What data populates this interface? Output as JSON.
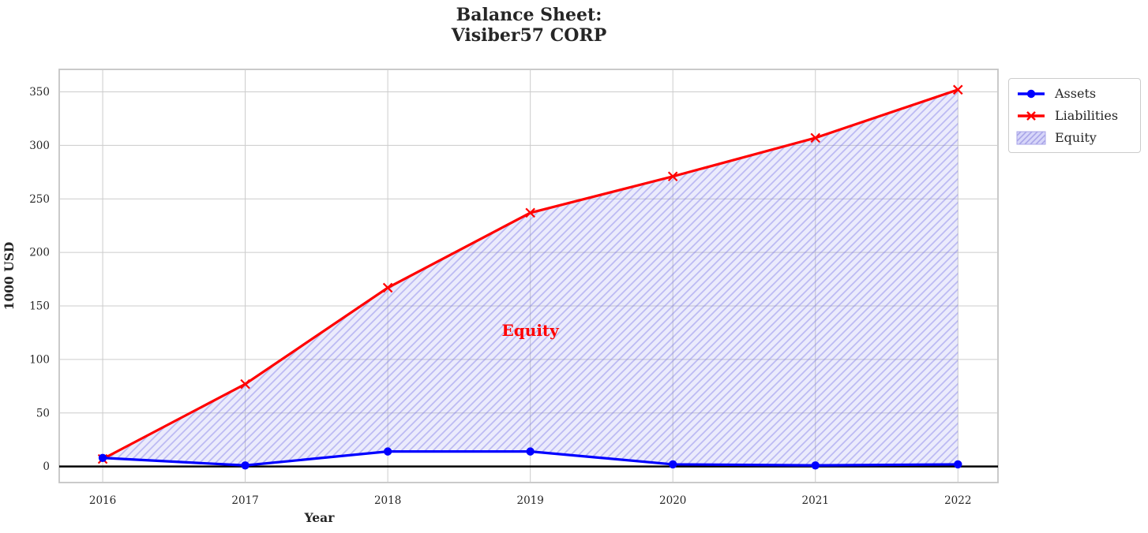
{
  "title": {
    "line1": "Balance Sheet:",
    "line2": "Visiber57 CORP"
  },
  "legend": {
    "items": [
      {
        "label": "Assets",
        "marker": "circle-line"
      },
      {
        "label": "Liabilities",
        "marker": "x-line"
      },
      {
        "label": "Equity",
        "marker": "hatched-patch"
      }
    ]
  },
  "colors": {
    "assets": "#0000ff",
    "liabilities": "#ff0000",
    "equity_fill": "rgba(122,119,235,0.15)",
    "equity_hatch": "rgba(112,108,230,0.38)",
    "legend_patch_fill": "rgba(122,119,235,0.30)",
    "legend_patch_edge": "#a8a4e8",
    "annotation": "#ff0000",
    "grid": "#cccccc",
    "frame": "#c4c4c4",
    "text": "#262626",
    "zero_line": "#000000"
  },
  "chart_data": {
    "type": "line",
    "title": "Balance Sheet:\nVisiber57 CORP",
    "xlabel": "Year",
    "ylabel": "1000 USD",
    "x": [
      2016,
      2017,
      2018,
      2019,
      2020,
      2021,
      2022
    ],
    "series": [
      {
        "name": "Assets",
        "color": "#0000ff",
        "marker": "circle",
        "values": [
          8,
          1,
          14,
          14,
          2,
          1,
          2
        ]
      },
      {
        "name": "Liabilities",
        "color": "#ff0000",
        "marker": "x",
        "values": [
          7,
          77,
          167,
          237,
          271,
          307,
          352
        ]
      }
    ],
    "area": {
      "name": "Equity",
      "between": [
        "Assets",
        "Liabilities"
      ],
      "hatch": "/"
    },
    "xticks": [
      "2016",
      "2017",
      "2018",
      "2019",
      "2020",
      "2021",
      "2022"
    ],
    "yticks": [
      0,
      50,
      100,
      150,
      200,
      250,
      300,
      350
    ],
    "xlim": [
      2015.695,
      2022.281
    ],
    "ylim": [
      -15,
      371
    ],
    "grid": true,
    "axhline": 0,
    "legend_position": "outside-top-right",
    "annotations": [
      {
        "text": "Equity",
        "x": 2019,
        "y": 127,
        "color": "#ff0000"
      }
    ]
  }
}
